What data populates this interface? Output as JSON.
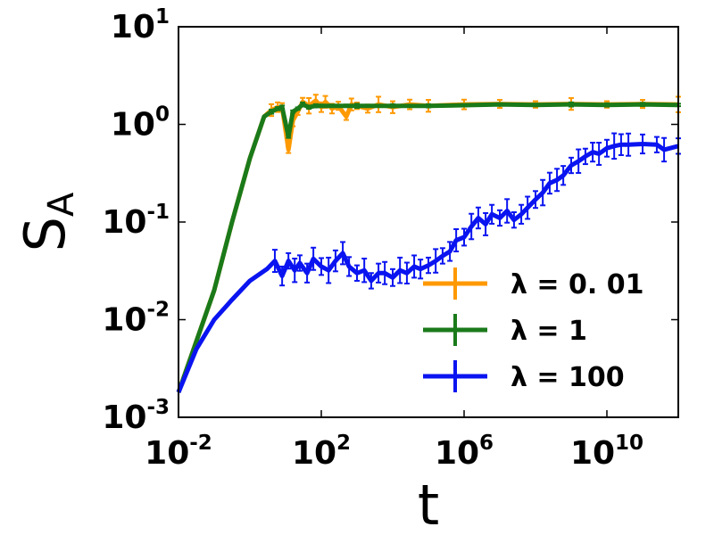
{
  "chart_data": {
    "type": "line",
    "title": "",
    "xlabel": "t",
    "ylabel": {
      "main": "S",
      "sub": "A"
    },
    "x_scale": "log",
    "y_scale": "log",
    "xlim": [
      0.01,
      1000000000000.0
    ],
    "ylim": [
      0.001,
      10
    ],
    "x_ticks": [
      {
        "value": 0.01,
        "base": "10",
        "exp": "-2"
      },
      {
        "value": 100,
        "base": "10",
        "exp": "2"
      },
      {
        "value": 1000000,
        "base": "10",
        "exp": "6"
      },
      {
        "value": 10000000000,
        "base": "10",
        "exp": "10"
      }
    ],
    "y_ticks": [
      {
        "value": 0.001,
        "base": "10",
        "exp": "-3"
      },
      {
        "value": 0.01,
        "base": "10",
        "exp": "-2"
      },
      {
        "value": 0.1,
        "base": "10",
        "exp": "-1"
      },
      {
        "value": 1,
        "base": "10",
        "exp": "0"
      },
      {
        "value": 10,
        "base": "10",
        "exp": "1"
      }
    ],
    "grid": false,
    "legend_position": "lower-right",
    "series": [
      {
        "name": "λ = 0. 01",
        "color": "#ff9900",
        "points": [
          [
            0.01,
            0.0018
          ],
          [
            0.0316,
            0.006
          ],
          [
            0.1,
            0.02
          ],
          [
            0.316,
            0.1
          ],
          [
            1,
            0.45
          ],
          [
            2.5,
            1.2
          ],
          [
            4,
            1.4
          ],
          [
            6,
            1.5
          ],
          [
            8,
            1.5
          ],
          [
            12,
            0.55
          ],
          [
            16,
            1.1
          ],
          [
            22,
            1.35
          ],
          [
            30,
            1.7
          ],
          [
            45,
            1.55
          ],
          [
            70,
            1.75
          ],
          [
            100,
            1.5
          ],
          [
            130,
            1.7
          ],
          [
            200,
            1.45
          ],
          [
            300,
            1.55
          ],
          [
            500,
            1.2
          ],
          [
            700,
            1.6
          ],
          [
            1000,
            1.55
          ],
          [
            2000,
            1.45
          ],
          [
            4000,
            1.6
          ],
          [
            10000,
            1.5
          ],
          [
            30000,
            1.6
          ],
          [
            100000,
            1.55
          ],
          [
            1000000,
            1.6
          ],
          [
            10000000,
            1.62
          ],
          [
            100000000,
            1.6
          ],
          [
            1000000000,
            1.62
          ],
          [
            10000000000,
            1.6
          ],
          [
            100000000000,
            1.62
          ],
          [
            1000000000000,
            1.6
          ]
        ],
        "errors": [
          0.15,
          0.08,
          0.1,
          0.2,
          0.15,
          0.12,
          0.15,
          0.12,
          0.1,
          0.08
        ]
      },
      {
        "name": "λ = 1",
        "color": "#1a7a1a",
        "points": [
          [
            0.01,
            0.0018
          ],
          [
            0.0316,
            0.006
          ],
          [
            0.1,
            0.02
          ],
          [
            0.316,
            0.1
          ],
          [
            1,
            0.45
          ],
          [
            2.5,
            1.2
          ],
          [
            4,
            1.35
          ],
          [
            6,
            1.45
          ],
          [
            8,
            1.5
          ],
          [
            12,
            0.75
          ],
          [
            16,
            1.35
          ],
          [
            22,
            1.45
          ],
          [
            30,
            1.6
          ],
          [
            45,
            1.5
          ],
          [
            70,
            1.55
          ],
          [
            100,
            1.55
          ],
          [
            200,
            1.55
          ],
          [
            500,
            1.55
          ],
          [
            1000,
            1.55
          ],
          [
            10000,
            1.55
          ],
          [
            100000,
            1.55
          ],
          [
            1000000,
            1.57
          ],
          [
            10000000,
            1.6
          ],
          [
            100000000,
            1.58
          ],
          [
            1000000000,
            1.6
          ],
          [
            10000000000,
            1.58
          ],
          [
            100000000000,
            1.6
          ],
          [
            1000000000000,
            1.58
          ]
        ],
        "errors": [
          0.05,
          0.04,
          0.04,
          0.03,
          0.03,
          0.03
        ]
      },
      {
        "name": "λ = 100",
        "color": "#0a14f0",
        "points": [
          [
            0.01,
            0.0018
          ],
          [
            0.0316,
            0.005
          ],
          [
            0.1,
            0.01
          ],
          [
            0.316,
            0.016
          ],
          [
            1,
            0.025
          ],
          [
            3,
            0.033
          ],
          [
            5,
            0.04
          ],
          [
            8,
            0.028
          ],
          [
            12,
            0.04
          ],
          [
            18,
            0.032
          ],
          [
            25,
            0.038
          ],
          [
            40,
            0.03
          ],
          [
            60,
            0.042
          ],
          [
            100,
            0.035
          ],
          [
            160,
            0.032
          ],
          [
            250,
            0.04
          ],
          [
            400,
            0.048
          ],
          [
            600,
            0.035
          ],
          [
            1000,
            0.03
          ],
          [
            1600,
            0.032
          ],
          [
            2500,
            0.025
          ],
          [
            4000,
            0.03
          ],
          [
            6000,
            0.03
          ],
          [
            10000,
            0.027
          ],
          [
            16000,
            0.032
          ],
          [
            25000,
            0.03
          ],
          [
            40000,
            0.035
          ],
          [
            60000,
            0.033
          ],
          [
            100000,
            0.036
          ],
          [
            160000,
            0.04
          ],
          [
            250000,
            0.045
          ],
          [
            400000,
            0.05
          ],
          [
            600000,
            0.065
          ],
          [
            1000000,
            0.07
          ],
          [
            1600000,
            0.09
          ],
          [
            2500000,
            0.11
          ],
          [
            4000000,
            0.095
          ],
          [
            6000000,
            0.12
          ],
          [
            10000000,
            0.11
          ],
          [
            16000000,
            0.13
          ],
          [
            25000000,
            0.105
          ],
          [
            40000000,
            0.12
          ],
          [
            60000000,
            0.14
          ],
          [
            100000000,
            0.17
          ],
          [
            160000000,
            0.2
          ],
          [
            250000000,
            0.25
          ],
          [
            400000000,
            0.27
          ],
          [
            600000000,
            0.3
          ],
          [
            1000000000,
            0.38
          ],
          [
            1600000000,
            0.42
          ],
          [
            2500000000,
            0.47
          ],
          [
            4000000000,
            0.52
          ],
          [
            6000000000,
            0.5
          ],
          [
            10000000000,
            0.57
          ],
          [
            16000000000,
            0.6
          ],
          [
            25000000000,
            0.62
          ],
          [
            40000000000,
            0.62
          ],
          [
            100000000000,
            0.63
          ],
          [
            250000000000,
            0.62
          ],
          [
            400000000000,
            0.55
          ],
          [
            1000000000000,
            0.6
          ]
        ],
        "errors": [
          0.2,
          0.25,
          0.3,
          0.22,
          0.35,
          0.28,
          0.3,
          0.25,
          0.2,
          0.32
        ]
      }
    ]
  }
}
